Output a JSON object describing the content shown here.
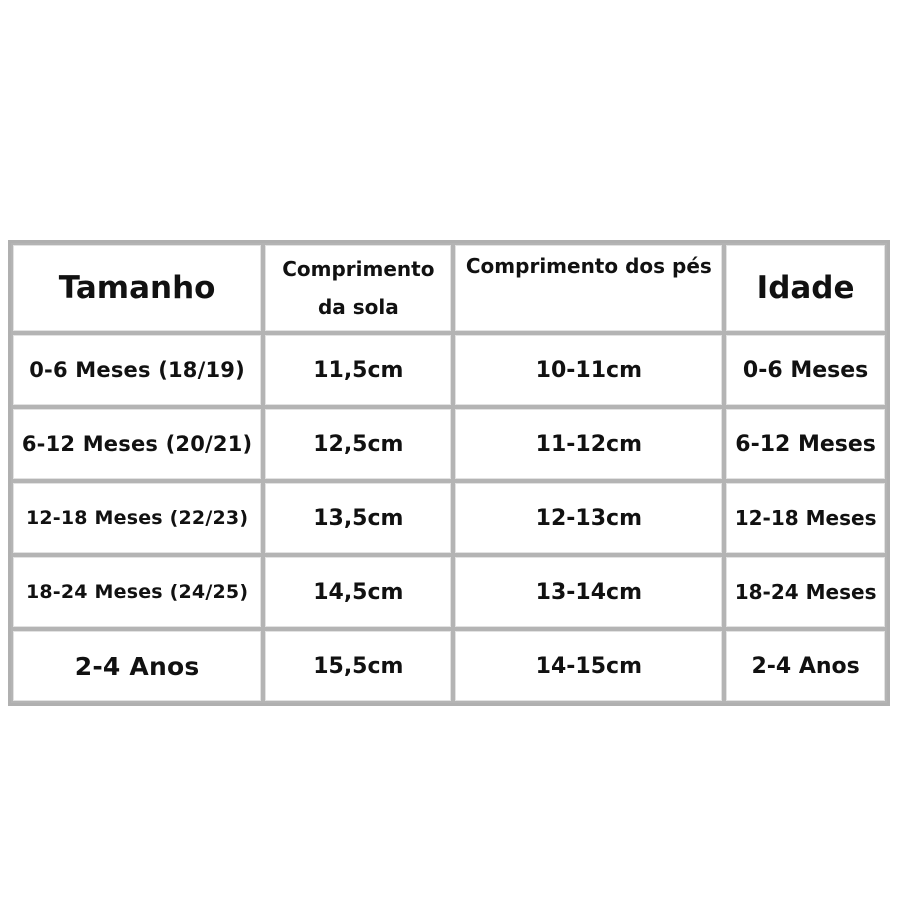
{
  "headers": [
    "Tamanho",
    "Comprimento da sola",
    "Comprimento dos pés",
    "Idade"
  ],
  "rows": [
    [
      "0-6 Meses (18/19)",
      "11,5cm",
      "10-11cm",
      "0-6 Meses"
    ],
    [
      "6-12 Meses (20/21)",
      "12,5cm",
      "11-12cm",
      "6-12 Meses"
    ],
    [
      "12-18 Meses (22/23)",
      "13,5cm",
      "12-13cm",
      "12-18 Meses"
    ],
    [
      "18-24 Meses (24/25)",
      "14,5cm",
      "13-14cm",
      "18-24 Meses"
    ],
    [
      "2-4 Anos",
      "15,5cm",
      "14-15cm",
      "2-4 Anos"
    ]
  ]
}
